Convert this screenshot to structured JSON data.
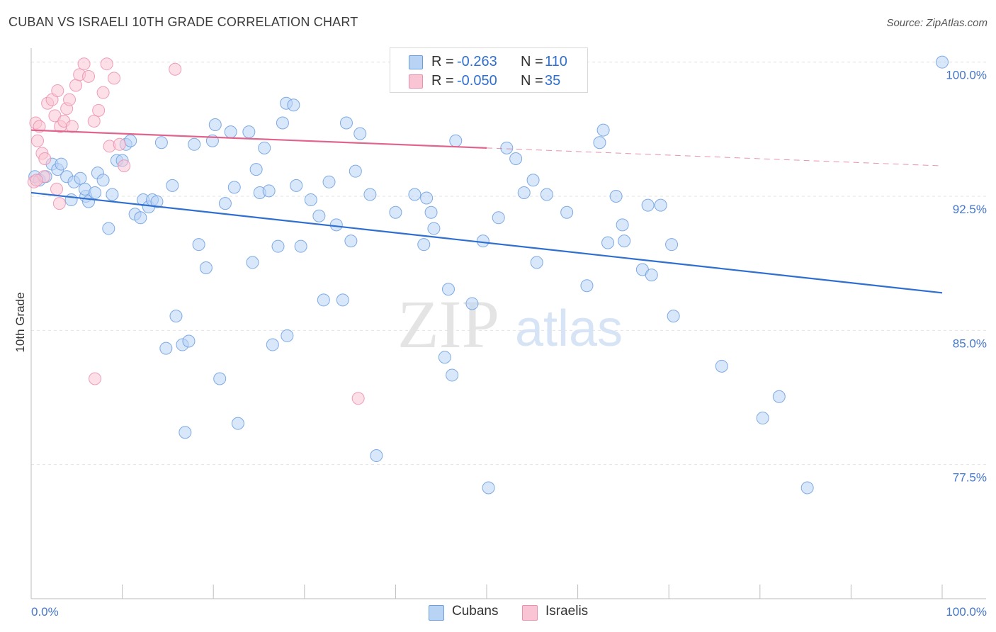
{
  "title": "CUBAN VS ISRAELI 10TH GRADE CORRELATION CHART",
  "source": "Source: ZipAtlas.com",
  "watermark": {
    "zip": "ZIP",
    "atlas": "atlas"
  },
  "legend": {
    "rows": [
      {
        "r_label": "R =",
        "r_value": "-0.263",
        "n_label": "N =",
        "n_value": "110"
      },
      {
        "r_label": "R =",
        "r_value": "-0.050",
        "n_label": "N =",
        "n_value": "35"
      }
    ]
  },
  "bottom_legend": {
    "cubans": "Cubans",
    "israelis": "Israelis"
  },
  "colors": {
    "cubans_fill": "#b9d3f5",
    "cubans_stroke": "#6a9edf",
    "cubans_line": "#2f6fd0",
    "israelis_fill": "#f9c4d4",
    "israelis_stroke": "#ec8fae",
    "israelis_line": "#e0648c",
    "axis_text": "#4477cc",
    "grid": "#e3e3e3"
  },
  "chart_data": {
    "type": "scatter",
    "title": "CUBAN VS ISRAELI 10TH GRADE CORRELATION CHART",
    "ylabel": "10th Grade",
    "xlabel": "",
    "xlim": [
      0,
      100
    ],
    "ylim": [
      70.0,
      100.7
    ],
    "x_tick_labels": [
      "0.0%",
      "100.0%"
    ],
    "y_ticks": [
      77.5,
      85.0,
      92.5,
      100.0
    ],
    "y_tick_labels": [
      "77.5%",
      "85.0%",
      "92.5%",
      "100.0%"
    ],
    "grid": true,
    "legend_placement": "top-center",
    "series": [
      {
        "name": "Cubans",
        "r": -0.263,
        "n": 110,
        "trend": {
          "x": [
            0,
            100
          ],
          "y": [
            92.7,
            87.1
          ],
          "dashed_from": null
        },
        "points": [
          [
            0.4,
            93.6
          ],
          [
            0.9,
            93.4
          ],
          [
            1.6,
            93.6
          ],
          [
            2.3,
            94.3
          ],
          [
            2.9,
            94.0
          ],
          [
            3.3,
            94.3
          ],
          [
            3.9,
            93.6
          ],
          [
            4.4,
            92.3
          ],
          [
            4.7,
            93.3
          ],
          [
            5.4,
            93.5
          ],
          [
            6.0,
            92.5
          ],
          [
            6.3,
            92.2
          ],
          [
            5.9,
            92.9
          ],
          [
            7.0,
            92.7
          ],
          [
            7.3,
            93.8
          ],
          [
            7.9,
            93.4
          ],
          [
            8.5,
            90.7
          ],
          [
            8.9,
            92.6
          ],
          [
            9.4,
            94.5
          ],
          [
            10.0,
            94.5
          ],
          [
            10.4,
            95.4
          ],
          [
            10.9,
            95.6
          ],
          [
            11.4,
            91.5
          ],
          [
            12.3,
            92.3
          ],
          [
            12.9,
            91.9
          ],
          [
            12.0,
            91.3
          ],
          [
            13.3,
            92.3
          ],
          [
            13.8,
            92.2
          ],
          [
            14.3,
            95.5
          ],
          [
            14.8,
            84.0
          ],
          [
            15.5,
            93.1
          ],
          [
            15.9,
            85.8
          ],
          [
            16.6,
            84.2
          ],
          [
            16.9,
            79.3
          ],
          [
            17.3,
            84.4
          ],
          [
            17.9,
            95.4
          ],
          [
            18.4,
            89.8
          ],
          [
            19.2,
            88.5
          ],
          [
            19.9,
            95.6
          ],
          [
            20.2,
            96.5
          ],
          [
            20.7,
            82.3
          ],
          [
            21.3,
            92.1
          ],
          [
            21.9,
            96.1
          ],
          [
            22.3,
            93.0
          ],
          [
            22.7,
            79.8
          ],
          [
            23.9,
            96.1
          ],
          [
            24.3,
            88.8
          ],
          [
            24.7,
            94.0
          ],
          [
            25.1,
            92.7
          ],
          [
            25.6,
            95.2
          ],
          [
            26.1,
            92.8
          ],
          [
            26.5,
            84.2
          ],
          [
            27.1,
            89.7
          ],
          [
            27.6,
            96.6
          ],
          [
            28.0,
            97.7
          ],
          [
            28.1,
            84.7
          ],
          [
            28.8,
            97.6
          ],
          [
            29.1,
            93.1
          ],
          [
            29.6,
            89.7
          ],
          [
            30.7,
            92.3
          ],
          [
            31.6,
            91.4
          ],
          [
            32.1,
            86.7
          ],
          [
            32.7,
            93.3
          ],
          [
            33.5,
            90.9
          ],
          [
            34.2,
            86.7
          ],
          [
            34.6,
            96.6
          ],
          [
            35.1,
            90.0
          ],
          [
            35.6,
            93.9
          ],
          [
            36.1,
            96.0
          ],
          [
            37.2,
            92.6
          ],
          [
            37.9,
            78.0
          ],
          [
            40.0,
            91.6
          ],
          [
            42.1,
            92.6
          ],
          [
            43.1,
            89.8
          ],
          [
            43.4,
            92.4
          ],
          [
            43.9,
            91.6
          ],
          [
            44.2,
            90.7
          ],
          [
            45.4,
            83.5
          ],
          [
            45.8,
            87.3
          ],
          [
            46.2,
            82.5
          ],
          [
            46.6,
            95.6
          ],
          [
            48.4,
            86.5
          ],
          [
            49.6,
            90.0
          ],
          [
            50.2,
            76.2
          ],
          [
            51.3,
            91.3
          ],
          [
            52.2,
            95.2
          ],
          [
            53.2,
            94.6
          ],
          [
            54.1,
            92.7
          ],
          [
            55.1,
            93.4
          ],
          [
            55.5,
            88.8
          ],
          [
            56.6,
            92.6
          ],
          [
            58.8,
            91.6
          ],
          [
            61.0,
            87.5
          ],
          [
            62.4,
            95.5
          ],
          [
            62.8,
            96.2
          ],
          [
            63.3,
            89.9
          ],
          [
            64.2,
            92.5
          ],
          [
            64.9,
            90.9
          ],
          [
            65.1,
            90.0
          ],
          [
            67.1,
            88.4
          ],
          [
            67.7,
            92.0
          ],
          [
            68.1,
            88.1
          ],
          [
            69.1,
            92.0
          ],
          [
            70.3,
            89.8
          ],
          [
            70.5,
            85.8
          ],
          [
            75.8,
            83.0
          ],
          [
            80.3,
            80.1
          ],
          [
            82.1,
            81.3
          ],
          [
            85.2,
            76.2
          ],
          [
            100.0,
            100.0
          ]
        ]
      },
      {
        "name": "Israelis",
        "r": -0.05,
        "n": 35,
        "trend": {
          "x": [
            0,
            100
          ],
          "y": [
            96.2,
            94.2
          ],
          "dashed_from": 50
        },
        "points": [
          [
            0.3,
            93.3
          ],
          [
            0.5,
            96.6
          ],
          [
            0.7,
            95.6
          ],
          [
            0.9,
            96.4
          ],
          [
            1.2,
            94.9
          ],
          [
            1.5,
            94.6
          ],
          [
            1.8,
            97.7
          ],
          [
            2.3,
            97.9
          ],
          [
            2.6,
            97.0
          ],
          [
            2.9,
            98.4
          ],
          [
            3.2,
            96.4
          ],
          [
            3.6,
            96.7
          ],
          [
            3.9,
            97.4
          ],
          [
            4.2,
            97.9
          ],
          [
            4.5,
            96.4
          ],
          [
            4.9,
            98.7
          ],
          [
            5.3,
            99.3
          ],
          [
            5.8,
            99.9
          ],
          [
            6.3,
            99.2
          ],
          [
            6.9,
            96.7
          ],
          [
            7.4,
            97.3
          ],
          [
            7.9,
            98.3
          ],
          [
            8.3,
            99.9
          ],
          [
            8.6,
            95.3
          ],
          [
            9.1,
            99.1
          ],
          [
            9.7,
            95.4
          ],
          [
            10.2,
            94.2
          ],
          [
            15.8,
            99.6
          ],
          [
            3.1,
            92.1
          ],
          [
            2.8,
            92.9
          ],
          [
            7.0,
            82.3
          ],
          [
            35.9,
            81.2
          ],
          [
            45.1,
            100.1
          ],
          [
            1.4,
            93.6
          ],
          [
            0.6,
            93.4
          ]
        ]
      }
    ]
  }
}
